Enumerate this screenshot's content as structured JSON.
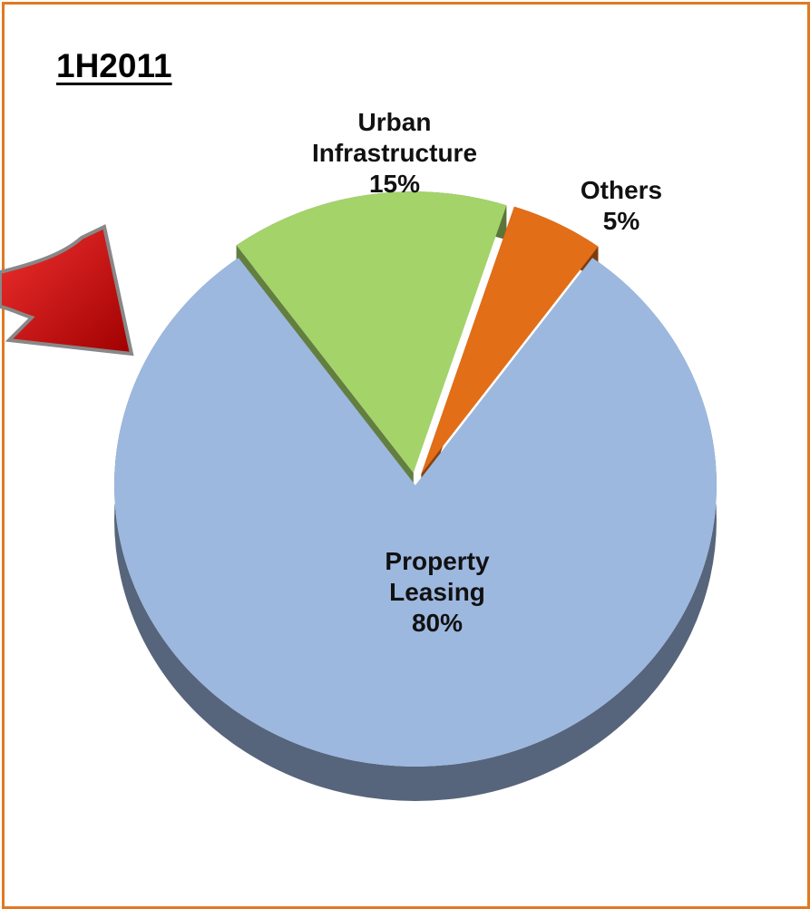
{
  "chart_data": {
    "type": "pie",
    "title": "1H2011",
    "categories": [
      "Urban Infrastructure",
      "Others",
      "Property Leasing"
    ],
    "values": [
      15,
      5,
      80
    ],
    "value_labels": [
      "15%",
      "5%",
      "80%"
    ],
    "colors": [
      "#a4d36a",
      "#e26e17",
      "#9db8df"
    ]
  }
}
